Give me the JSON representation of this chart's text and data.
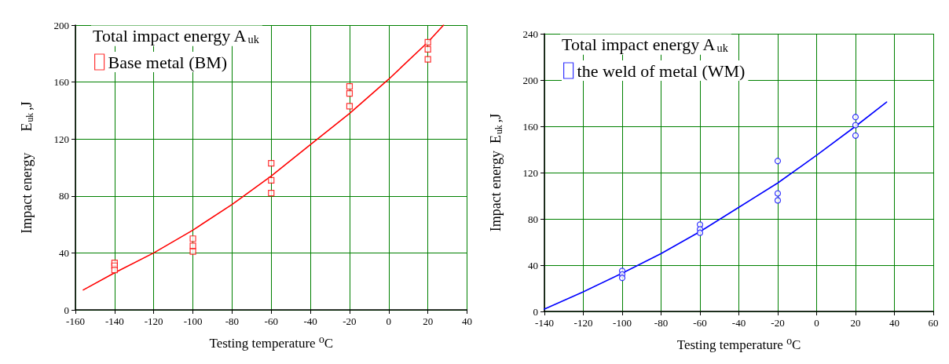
{
  "chart_data": [
    {
      "type": "scatter",
      "legend_title": "Total impact energy A$_{uk}$",
      "xlabel": "Testing temperature ⁰C",
      "ylabel": "Impact energy      E$_{uk}$,J",
      "xlim": [
        -160,
        40
      ],
      "xticks": [
        -160,
        -140,
        -120,
        -100,
        -80,
        -60,
        -40,
        -20,
        0,
        20,
        40
      ],
      "ylim": [
        0,
        200
      ],
      "yticks": [
        0,
        40,
        80,
        120,
        160,
        200
      ],
      "grid": true,
      "legend": "top left",
      "series": [
        {
          "name": "Base metal (BM)",
          "marker": "square",
          "color": "#ff0000",
          "x": [
            -140,
            -140,
            -140,
            -100,
            -100,
            -100,
            -60,
            -60,
            -60,
            -20,
            -20,
            -20,
            20,
            20,
            20
          ],
          "values": [
            33,
            31,
            28,
            50,
            45,
            41,
            103,
            91,
            82,
            157,
            152,
            143,
            188,
            183,
            176
          ]
        },
        {
          "type": "line",
          "marker": "none",
          "color": "#ff0000",
          "x": [
            -156,
            -140,
            -120,
            -100,
            -80,
            -60,
            -40,
            -20,
            0,
            20,
            28
          ],
          "values": [
            14,
            26,
            40,
            56,
            74,
            94,
            116,
            138,
            162,
            188,
            200
          ]
        }
      ]
    },
    {
      "type": "scatter",
      "legend_title": "Total impact energy A$_{uk}$",
      "xlabel": "Testing temperature ⁰C",
      "ylabel": "Impact energy  E$_{uk}$,J",
      "xlim": [
        -140,
        60
      ],
      "xticks": [
        -140,
        -120,
        -100,
        -80,
        -60,
        -40,
        -20,
        0,
        20,
        40,
        60
      ],
      "ylim": [
        0,
        240
      ],
      "yticks": [
        0,
        40,
        80,
        120,
        160,
        200,
        240
      ],
      "grid": true,
      "legend": "top left",
      "series": [
        {
          "name": "the weld of metal (WM)",
          "marker": "circle",
          "color": "#0000ff",
          "x": [
            -100,
            -100,
            -100,
            -60,
            -60,
            -60,
            -20,
            -20,
            -20,
            20,
            20,
            20
          ],
          "values": [
            35,
            32,
            29,
            75,
            71,
            68,
            130,
            102,
            96,
            168,
            161,
            152
          ]
        },
        {
          "type": "line",
          "marker": "none",
          "color": "#0000ff",
          "x": [
            -140,
            -120,
            -100,
            -80,
            -60,
            -40,
            -20,
            0,
            20,
            36
          ],
          "values": [
            2,
            17,
            33,
            50,
            69,
            90,
            111,
            135,
            160,
            181
          ]
        }
      ]
    }
  ]
}
